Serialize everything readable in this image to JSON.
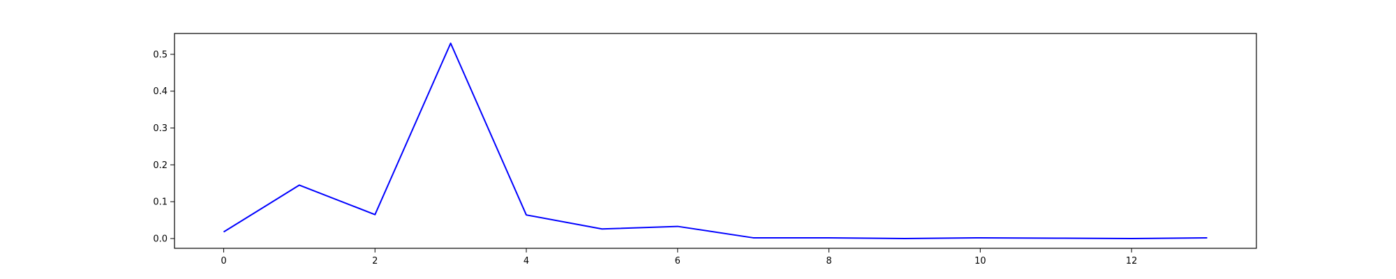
{
  "chart_data": {
    "type": "line",
    "title": "",
    "xlabel": "",
    "ylabel": "",
    "x": [
      0,
      1,
      2,
      3,
      4,
      5,
      6,
      7,
      8,
      9,
      10,
      11,
      12,
      13
    ],
    "series": [
      {
        "color": "#0000ff",
        "values": [
          0.018,
          0.145,
          0.065,
          0.53,
          0.064,
          0.026,
          0.033,
          0.002,
          0.002,
          0.0,
          0.002,
          0.001,
          0.0,
          0.002
        ]
      }
    ],
    "xlim": [
      -0.65,
      13.65
    ],
    "ylim": [
      -0.0265,
      0.5565
    ],
    "xticks": [
      0,
      2,
      4,
      6,
      8,
      10,
      12
    ],
    "xtick_labels": [
      "0",
      "2",
      "4",
      "6",
      "8",
      "10",
      "12"
    ],
    "yticks": [
      0.0,
      0.1,
      0.2,
      0.3,
      0.4,
      0.5
    ],
    "ytick_labels": [
      "0.0",
      "0.1",
      "0.2",
      "0.3",
      "0.4",
      "0.5"
    ],
    "grid": false,
    "legend": "none"
  }
}
